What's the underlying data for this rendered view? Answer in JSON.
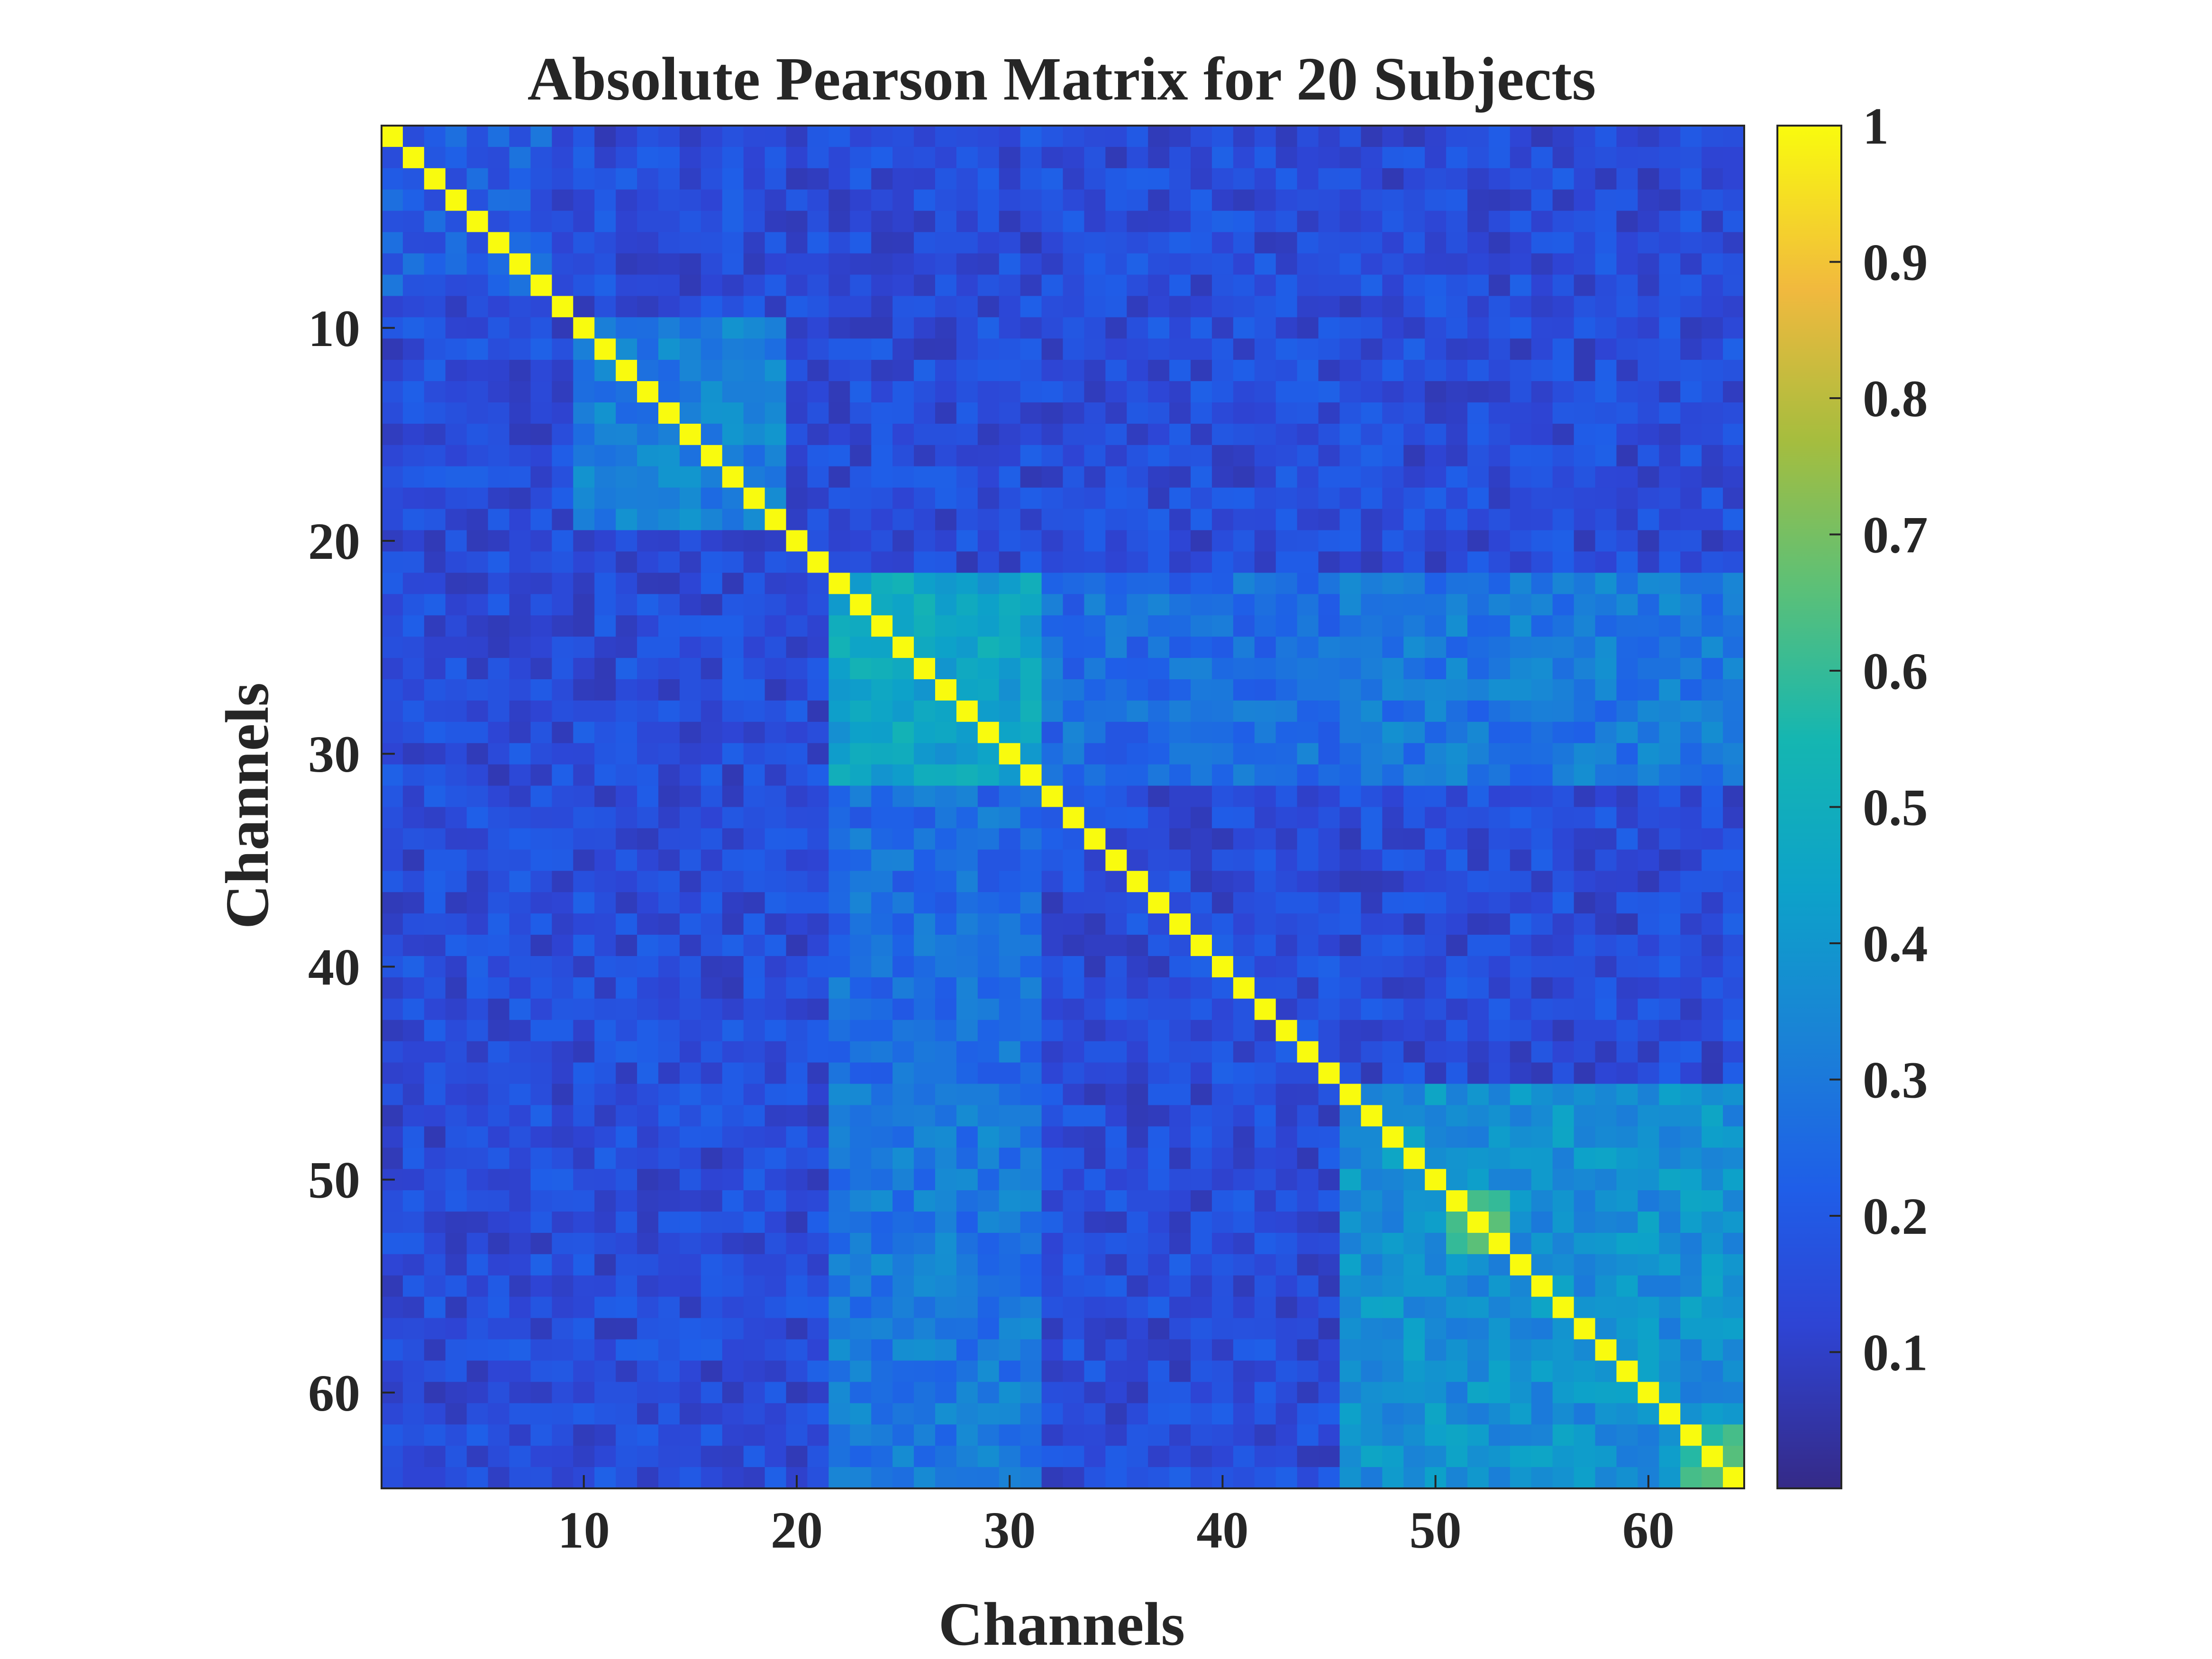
{
  "chart_data": {
    "type": "heatmap",
    "title": "Absolute Pearson Matrix for 20 Subjects",
    "xlabel": "Channels",
    "ylabel": "Channels",
    "n_channels": 64,
    "x_ticks": [
      10,
      20,
      30,
      40,
      50,
      60
    ],
    "y_ticks": [
      10,
      20,
      30,
      40,
      50,
      60
    ],
    "colorbar": {
      "ticks": [
        "0.1",
        "0.2",
        "0.3",
        "0.4",
        "0.5",
        "0.6",
        "0.7",
        "0.8",
        "0.9",
        "1"
      ],
      "tick_values": [
        0.1,
        0.2,
        0.3,
        0.4,
        0.5,
        0.6,
        0.7,
        0.8,
        0.9,
        1.0
      ],
      "range": [
        0.0,
        1.0
      ],
      "colormap": "parula"
    },
    "diagonal_value": 1.0,
    "blocks": [
      {
        "rows": [
          22,
          31
        ],
        "cols": [
          22,
          31
        ],
        "value": 0.45
      },
      {
        "rows": [
          22,
          31
        ],
        "cols": [
          46,
          64
        ],
        "value": 0.3
      },
      {
        "rows": [
          46,
          64
        ],
        "cols": [
          22,
          31
        ],
        "value": 0.3
      },
      {
        "rows": [
          46,
          64
        ],
        "cols": [
          46,
          64
        ],
        "value": 0.38
      },
      {
        "rows": [
          10,
          19
        ],
        "cols": [
          10,
          19
        ],
        "value": 0.32
      },
      {
        "rows": [
          51,
          53
        ],
        "cols": [
          51,
          53
        ],
        "value": 0.6
      },
      {
        "rows": [
          62,
          64
        ],
        "cols": [
          62,
          64
        ],
        "value": 0.6
      },
      {
        "rows": [
          22,
          31
        ],
        "cols": [
          32,
          64
        ],
        "value": 0.26
      },
      {
        "rows": [
          1,
          8
        ],
        "cols": [
          1,
          8
        ],
        "value": 0.22
      }
    ],
    "background_value": 0.15
  }
}
